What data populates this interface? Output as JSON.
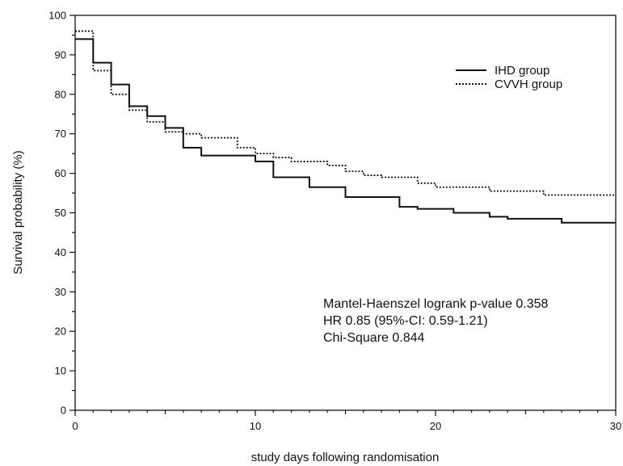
{
  "chart_data": {
    "type": "line",
    "title": "",
    "xlabel": "study days following randomisation",
    "ylabel": "Survival probability (%)",
    "xlim": [
      0,
      30
    ],
    "ylim": [
      0,
      100
    ],
    "x_ticks": [
      0,
      10,
      20,
      30
    ],
    "y_ticks": [
      0,
      10,
      20,
      30,
      40,
      50,
      60,
      70,
      80,
      90,
      100
    ],
    "grid": false,
    "step": true,
    "legend_position": "top-right",
    "series": [
      {
        "name": "IHD group",
        "style": "solid",
        "color": "#111111",
        "x": [
          0,
          1,
          2,
          3,
          4,
          5,
          6,
          7,
          9,
          10,
          11,
          13,
          15,
          18,
          19,
          21,
          23,
          24,
          27,
          30
        ],
        "y": [
          94,
          88,
          82.5,
          77,
          74.5,
          71.5,
          66.5,
          64.5,
          64.5,
          63,
          59,
          56.5,
          54,
          51.5,
          51,
          50,
          49,
          48.5,
          47.5,
          47.5
        ]
      },
      {
        "name": "CVVH group",
        "style": "dotted",
        "color": "#111111",
        "x": [
          0,
          1,
          2,
          3,
          4,
          5,
          6,
          7,
          9,
          10,
          11,
          12,
          14,
          15,
          16,
          17,
          19,
          20,
          23,
          26,
          30
        ],
        "y": [
          96,
          86,
          80,
          76,
          73,
          70.5,
          70,
          69,
          66.5,
          65,
          64,
          63,
          62,
          60.5,
          59.5,
          59,
          57.5,
          56.5,
          55.5,
          54.5,
          54.5
        ]
      }
    ],
    "annotations": [
      "Mantel-Haenszel logrank p-value 0.358",
      "HR 0.85 (95%-CI: 0.59-1.21)",
      "Chi-Square 0.844"
    ]
  }
}
